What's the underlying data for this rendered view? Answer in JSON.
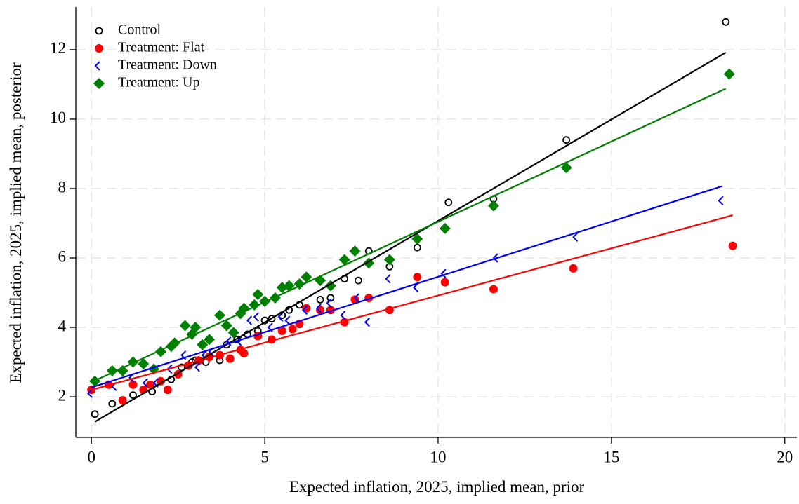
{
  "chart_data": {
    "type": "scatter",
    "x_label": "Expected inflation, 2025, implied mean, prior",
    "y_label": "Expected inflation, 2025, implied mean, posterior",
    "xlim": [
      -0.45,
      20.35
    ],
    "ylim": [
      0.83,
      13.23
    ],
    "xticks": [
      0,
      5,
      10,
      15,
      20
    ],
    "yticks": [
      2,
      4,
      6,
      8,
      10,
      12
    ],
    "grid": true,
    "legend": "top-left",
    "series": [
      {
        "name": "Control",
        "color": "#000000",
        "marker": "circle-open",
        "x": [
          0.1,
          0.6,
          1.2,
          1.75,
          2.3,
          2.6,
          2.9,
          3.0,
          3.3,
          3.7,
          3.9,
          4.2,
          4.5,
          4.8,
          5.0,
          5.2,
          5.5,
          5.7,
          6.0,
          6.6,
          6.9,
          7.3,
          7.7,
          8.0,
          8.6,
          9.4,
          10.3,
          11.6,
          13.7,
          18.3
        ],
        "values": [
          1.5,
          1.8,
          2.05,
          2.15,
          2.5,
          2.85,
          3.0,
          3.05,
          3.0,
          3.05,
          3.5,
          3.65,
          3.8,
          3.9,
          4.2,
          4.25,
          4.35,
          4.5,
          4.65,
          4.8,
          4.85,
          5.4,
          5.35,
          6.2,
          5.75,
          6.3,
          7.6,
          7.7,
          9.4,
          12.8
        ],
        "fit_x": [
          0.1,
          18.3
        ],
        "fit_y": [
          1.28,
          11.92
        ]
      },
      {
        "name": "Treatment: Flat",
        "color": "#ff0000",
        "marker": "circle",
        "x": [
          0,
          0.5,
          0.9,
          1.2,
          1.5,
          1.7,
          2.0,
          2.2,
          2.5,
          2.8,
          3.1,
          3.4,
          3.7,
          4.0,
          4.3,
          4.4,
          4.8,
          5.2,
          5.5,
          5.8,
          6.0,
          6.2,
          6.6,
          6.9,
          7.3,
          7.6,
          8.0,
          8.6,
          9.4,
          10.2,
          11.6,
          13.9,
          18.5
        ],
        "values": [
          2.2,
          2.35,
          1.9,
          2.35,
          2.2,
          2.35,
          2.45,
          2.2,
          2.65,
          2.9,
          3.05,
          3.15,
          3.2,
          3.1,
          3.35,
          3.25,
          3.75,
          3.65,
          3.9,
          3.95,
          4.1,
          4.55,
          4.5,
          4.5,
          4.15,
          4.8,
          4.85,
          4.5,
          5.45,
          5.3,
          5.1,
          5.7,
          6.35
        ],
        "fit_x": [
          0,
          18.5
        ],
        "fit_y": [
          2.2,
          7.23
        ]
      },
      {
        "name": "Treatment: Down",
        "color": "#0000ff",
        "marker": "chevron",
        "x": [
          0,
          0.7,
          1.2,
          1.6,
          1.9,
          2.3,
          2.7,
          3.1,
          3.3,
          3.5,
          4.0,
          4.3,
          4.6,
          4.8,
          5.2,
          5.5,
          5.7,
          6.2,
          6.6,
          6.9,
          7.3,
          7.7,
          8.0,
          8.6,
          9.4,
          10.2,
          11.7,
          14.0,
          18.2
        ],
        "values": [
          2.1,
          2.3,
          2.55,
          2.4,
          2.4,
          2.8,
          3.2,
          2.85,
          3.2,
          3.3,
          3.6,
          3.6,
          4.2,
          4.3,
          4.0,
          4.3,
          4.2,
          4.5,
          4.55,
          4.7,
          4.35,
          4.85,
          4.15,
          5.4,
          5.15,
          5.55,
          6.0,
          6.6,
          7.65
        ],
        "fit_x": [
          0,
          18.2
        ],
        "fit_y": [
          2.27,
          8.07
        ]
      },
      {
        "name": "Treatment: Up",
        "color": "#008000",
        "marker": "diamond",
        "x": [
          0.1,
          0.6,
          0.9,
          1.2,
          1.5,
          1.8,
          2.0,
          2.3,
          2.4,
          2.7,
          2.9,
          3.0,
          3.2,
          3.4,
          3.7,
          3.9,
          4.1,
          4.3,
          4.4,
          4.7,
          4.8,
          5.0,
          5.3,
          5.5,
          5.7,
          6.0,
          6.2,
          6.6,
          6.9,
          7.3,
          7.6,
          8.0,
          8.6,
          9.4,
          10.2,
          11.6,
          13.7,
          18.4
        ],
        "values": [
          2.45,
          2.75,
          2.75,
          3.0,
          2.95,
          2.8,
          3.3,
          3.45,
          3.55,
          4.05,
          3.8,
          4.0,
          3.5,
          3.65,
          4.35,
          4.05,
          3.85,
          4.4,
          4.55,
          4.65,
          4.95,
          4.75,
          4.85,
          5.15,
          5.2,
          5.25,
          5.45,
          5.35,
          5.2,
          5.95,
          6.2,
          5.85,
          5.95,
          6.55,
          6.85,
          7.5,
          8.6,
          11.3
        ],
        "fit_x": [
          0,
          18.3
        ],
        "fit_y": [
          2.42,
          10.88
        ]
      }
    ]
  }
}
